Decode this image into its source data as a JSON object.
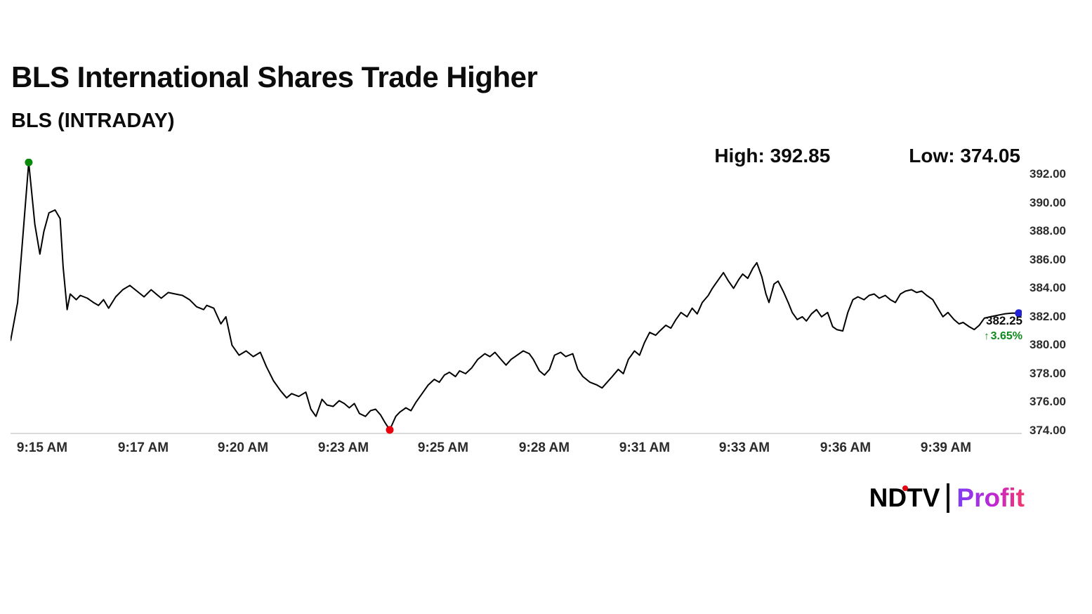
{
  "header": {
    "title": "BLS International Shares Trade Higher",
    "subtitle": "BLS (INTRADAY)"
  },
  "stats": {
    "high_label": "High:",
    "high_value": "392.85",
    "low_label": "Low:",
    "low_value": "374.05"
  },
  "last_price": {
    "value": "382.25",
    "arrow": "↑",
    "change_pct": "3.65%"
  },
  "branding": {
    "ndtv": "NDTV",
    "profit": "Profit"
  },
  "colors": {
    "line": "#000000",
    "axis_line": "#d9d9d9",
    "high_dot": "#0a8a0a",
    "low_dot": "#e8000d",
    "last_dot": "#2222d4",
    "change_green": "#0f8a1f",
    "brand_red": "#e30613",
    "profit_gradient_start": "#7b3ff2",
    "profit_gradient_end": "#f3376b"
  },
  "chart_data": {
    "type": "line",
    "title": "BLS (INTRADAY)",
    "high": 392.85,
    "low": 374.05,
    "last": 382.25,
    "change_pct": 3.65,
    "ylim": [
      373.75,
      393.1
    ],
    "grid": false,
    "y_ticks": [
      {
        "v": 392,
        "label": "392.00"
      },
      {
        "v": 390,
        "label": "390.00"
      },
      {
        "v": 388,
        "label": "388.00"
      },
      {
        "v": 386,
        "label": "386.00"
      },
      {
        "v": 384,
        "label": "384.00"
      },
      {
        "v": 382,
        "label": "382.00"
      },
      {
        "v": 380,
        "label": "380.00"
      },
      {
        "v": 378,
        "label": "378.00"
      },
      {
        "v": 376,
        "label": "376.00"
      },
      {
        "v": 374,
        "label": "374.00"
      }
    ],
    "x_ticks": [
      {
        "label": "9:15 AM",
        "pos": 0.031
      },
      {
        "label": "9:17 AM",
        "pos": 0.131
      },
      {
        "label": "9:20 AM",
        "pos": 0.23
      },
      {
        "label": "9:23 AM",
        "pos": 0.329
      },
      {
        "label": "9:25 AM",
        "pos": 0.428
      },
      {
        "label": "9:28 AM",
        "pos": 0.528
      },
      {
        "label": "9:31 AM",
        "pos": 0.627
      },
      {
        "label": "9:33 AM",
        "pos": 0.726
      },
      {
        "label": "9:36 AM",
        "pos": 0.826
      },
      {
        "label": "9:39 AM",
        "pos": 0.925
      }
    ],
    "points": [
      [
        0.0,
        380.3
      ],
      [
        0.007,
        383.0
      ],
      [
        0.018,
        392.85
      ],
      [
        0.024,
        388.5
      ],
      [
        0.029,
        386.4
      ],
      [
        0.033,
        388.0
      ],
      [
        0.038,
        389.3
      ],
      [
        0.044,
        389.5
      ],
      [
        0.049,
        388.9
      ],
      [
        0.052,
        385.5
      ],
      [
        0.056,
        382.5
      ],
      [
        0.059,
        383.6
      ],
      [
        0.065,
        383.2
      ],
      [
        0.069,
        383.5
      ],
      [
        0.076,
        383.3
      ],
      [
        0.082,
        383.0
      ],
      [
        0.087,
        382.8
      ],
      [
        0.092,
        383.2
      ],
      [
        0.097,
        382.6
      ],
      [
        0.104,
        383.4
      ],
      [
        0.111,
        383.9
      ],
      [
        0.118,
        384.2
      ],
      [
        0.125,
        383.8
      ],
      [
        0.132,
        383.4
      ],
      [
        0.139,
        383.9
      ],
      [
        0.144,
        383.6
      ],
      [
        0.149,
        383.3
      ],
      [
        0.156,
        383.7
      ],
      [
        0.163,
        383.6
      ],
      [
        0.17,
        383.5
      ],
      [
        0.177,
        383.2
      ],
      [
        0.184,
        382.7
      ],
      [
        0.191,
        382.5
      ],
      [
        0.194,
        382.8
      ],
      [
        0.201,
        382.6
      ],
      [
        0.208,
        381.5
      ],
      [
        0.213,
        382.0
      ],
      [
        0.219,
        380.0
      ],
      [
        0.226,
        379.3
      ],
      [
        0.233,
        379.6
      ],
      [
        0.24,
        379.2
      ],
      [
        0.247,
        379.5
      ],
      [
        0.253,
        378.5
      ],
      [
        0.26,
        377.5
      ],
      [
        0.267,
        376.8
      ],
      [
        0.273,
        376.3
      ],
      [
        0.278,
        376.6
      ],
      [
        0.285,
        376.4
      ],
      [
        0.292,
        376.7
      ],
      [
        0.297,
        375.5
      ],
      [
        0.302,
        375.0
      ],
      [
        0.308,
        376.2
      ],
      [
        0.313,
        375.8
      ],
      [
        0.319,
        375.7
      ],
      [
        0.325,
        376.1
      ],
      [
        0.33,
        375.9
      ],
      [
        0.335,
        375.6
      ],
      [
        0.34,
        375.9
      ],
      [
        0.345,
        375.2
      ],
      [
        0.351,
        375.0
      ],
      [
        0.356,
        375.4
      ],
      [
        0.361,
        375.5
      ],
      [
        0.366,
        375.1
      ],
      [
        0.37,
        374.6
      ],
      [
        0.375,
        374.05
      ],
      [
        0.381,
        375.0
      ],
      [
        0.385,
        375.3
      ],
      [
        0.391,
        375.6
      ],
      [
        0.396,
        375.4
      ],
      [
        0.401,
        376.0
      ],
      [
        0.406,
        376.5
      ],
      [
        0.413,
        377.2
      ],
      [
        0.419,
        377.6
      ],
      [
        0.424,
        377.4
      ],
      [
        0.429,
        377.9
      ],
      [
        0.434,
        378.1
      ],
      [
        0.44,
        377.8
      ],
      [
        0.444,
        378.2
      ],
      [
        0.45,
        378.0
      ],
      [
        0.456,
        378.4
      ],
      [
        0.462,
        379.0
      ],
      [
        0.469,
        379.4
      ],
      [
        0.474,
        379.2
      ],
      [
        0.479,
        379.5
      ],
      [
        0.485,
        379.0
      ],
      [
        0.49,
        378.6
      ],
      [
        0.495,
        379.0
      ],
      [
        0.501,
        379.3
      ],
      [
        0.507,
        379.6
      ],
      [
        0.513,
        379.4
      ],
      [
        0.517,
        379.0
      ],
      [
        0.523,
        378.2
      ],
      [
        0.528,
        377.9
      ],
      [
        0.533,
        378.3
      ],
      [
        0.538,
        379.3
      ],
      [
        0.544,
        379.5
      ],
      [
        0.549,
        379.2
      ],
      [
        0.556,
        379.4
      ],
      [
        0.561,
        378.3
      ],
      [
        0.566,
        377.8
      ],
      [
        0.573,
        377.4
      ],
      [
        0.58,
        377.2
      ],
      [
        0.585,
        377.0
      ],
      [
        0.59,
        377.4
      ],
      [
        0.595,
        377.8
      ],
      [
        0.601,
        378.3
      ],
      [
        0.606,
        378.0
      ],
      [
        0.611,
        379.0
      ],
      [
        0.617,
        379.6
      ],
      [
        0.622,
        379.3
      ],
      [
        0.627,
        380.2
      ],
      [
        0.632,
        380.9
      ],
      [
        0.638,
        380.7
      ],
      [
        0.642,
        381.0
      ],
      [
        0.648,
        381.4
      ],
      [
        0.653,
        381.2
      ],
      [
        0.658,
        381.8
      ],
      [
        0.663,
        382.3
      ],
      [
        0.669,
        382.0
      ],
      [
        0.674,
        382.6
      ],
      [
        0.679,
        382.2
      ],
      [
        0.684,
        383.0
      ],
      [
        0.69,
        383.5
      ],
      [
        0.694,
        384.0
      ],
      [
        0.7,
        384.6
      ],
      [
        0.705,
        385.1
      ],
      [
        0.71,
        384.5
      ],
      [
        0.715,
        384.0
      ],
      [
        0.72,
        384.6
      ],
      [
        0.724,
        385.0
      ],
      [
        0.729,
        384.7
      ],
      [
        0.734,
        385.4
      ],
      [
        0.738,
        385.8
      ],
      [
        0.743,
        384.8
      ],
      [
        0.747,
        383.6
      ],
      [
        0.75,
        383.0
      ],
      [
        0.755,
        384.3
      ],
      [
        0.759,
        384.5
      ],
      [
        0.764,
        383.8
      ],
      [
        0.769,
        383.0
      ],
      [
        0.773,
        382.3
      ],
      [
        0.778,
        381.8
      ],
      [
        0.783,
        382.0
      ],
      [
        0.787,
        381.7
      ],
      [
        0.792,
        382.2
      ],
      [
        0.797,
        382.5
      ],
      [
        0.802,
        382.0
      ],
      [
        0.808,
        382.3
      ],
      [
        0.813,
        381.3
      ],
      [
        0.817,
        381.1
      ],
      [
        0.823,
        381.0
      ],
      [
        0.828,
        382.3
      ],
      [
        0.833,
        383.2
      ],
      [
        0.838,
        383.4
      ],
      [
        0.844,
        383.2
      ],
      [
        0.849,
        383.5
      ],
      [
        0.854,
        383.6
      ],
      [
        0.859,
        383.3
      ],
      [
        0.865,
        383.5
      ],
      [
        0.87,
        383.2
      ],
      [
        0.875,
        383.0
      ],
      [
        0.88,
        383.6
      ],
      [
        0.885,
        383.8
      ],
      [
        0.891,
        383.9
      ],
      [
        0.896,
        383.7
      ],
      [
        0.901,
        383.8
      ],
      [
        0.906,
        383.5
      ],
      [
        0.912,
        383.2
      ],
      [
        0.917,
        382.6
      ],
      [
        0.922,
        382.0
      ],
      [
        0.927,
        382.3
      ],
      [
        0.933,
        381.8
      ],
      [
        0.938,
        381.5
      ],
      [
        0.942,
        381.6
      ],
      [
        0.948,
        381.3
      ],
      [
        0.953,
        381.1
      ],
      [
        0.958,
        381.4
      ],
      [
        0.963,
        381.9
      ],
      [
        0.969,
        382.0
      ],
      [
        0.976,
        382.1
      ],
      [
        0.983,
        382.2
      ],
      [
        0.99,
        382.25
      ],
      [
        0.997,
        382.25
      ]
    ]
  }
}
